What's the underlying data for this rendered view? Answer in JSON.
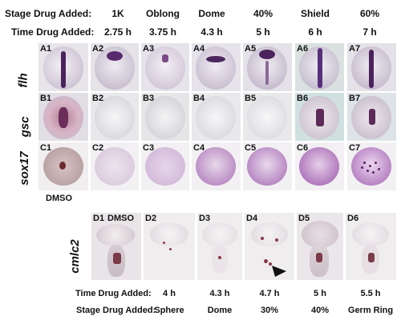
{
  "top_header": {
    "stage_label": "Stage Drug Added:",
    "time_label": "Time Drug Added:",
    "stages": [
      "1K",
      "Oblong",
      "Dome",
      "40%",
      "Shield",
      "60%"
    ],
    "times": [
      "2.75 h",
      "3.75 h",
      "4.3 h",
      "5 h",
      "6 h",
      "7 h"
    ]
  },
  "row_labels": [
    "flh",
    "gsc",
    "sox17",
    "cmlc2"
  ],
  "panels_top": {
    "A": [
      "A1",
      "A2",
      "A3",
      "A4",
      "A5",
      "A6",
      "A7"
    ],
    "B": [
      "B1",
      "B2",
      "B3",
      "B4",
      "B5",
      "B6",
      "B7"
    ],
    "C": [
      "C1",
      "C2",
      "C3",
      "C4",
      "C5",
      "C6",
      "C7"
    ]
  },
  "dmso_c_label": "DMSO",
  "panels_bottom": [
    "D1",
    "D2",
    "D3",
    "D4",
    "D5",
    "D6"
  ],
  "d1_dmso": "DMSO",
  "bottom_footer": {
    "time_label": "Time Drug Added:",
    "stage_label": "Stage Drug Added:",
    "times": [
      "4 h",
      "4.3 h",
      "4.7 h",
      "5 h",
      "5.5 h"
    ],
    "stages": [
      "Sphere",
      "Dome",
      "30%",
      "40%",
      "Germ Ring"
    ]
  },
  "colors": {
    "stain": "#5a2a6a",
    "background_panel": "#ece8ee"
  }
}
